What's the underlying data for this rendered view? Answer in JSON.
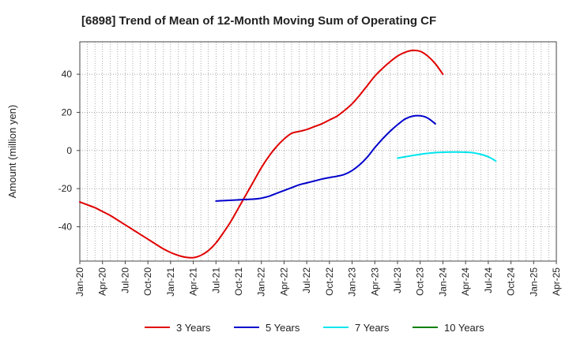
{
  "chart_data": {
    "type": "line",
    "title": "[6898]  Trend of Mean of 12-Month Moving Sum of Operating CF",
    "xlabel": "",
    "ylabel": "Amount (million yen)",
    "ylim": [
      -58,
      57
    ],
    "yticks": [
      40,
      20,
      0,
      -20,
      -40
    ],
    "ytick_labels": [
      "40",
      "20",
      "0",
      "-20",
      "-40"
    ],
    "x_start": "Jan-20",
    "x_end": "Apr-25",
    "xtick_labels": [
      "Jan-20",
      "Apr-20",
      "Jul-20",
      "Oct-20",
      "Jan-21",
      "Apr-21",
      "Jul-21",
      "Oct-21",
      "Jan-22",
      "Apr-22",
      "Jul-22",
      "Oct-22",
      "Jan-23",
      "Apr-23",
      "Jul-23",
      "Oct-23",
      "Jan-24",
      "Apr-24",
      "Jul-24",
      "Oct-24",
      "Jan-25",
      "Apr-25"
    ],
    "grid": true,
    "legend_position": "bottom",
    "series": [
      {
        "name": "3 Years",
        "color": "#e00000",
        "start_index": 0,
        "values": [
          -27,
          -28.5,
          -30,
          -32,
          -34,
          -36.5,
          -39,
          -41.5,
          -44,
          -46.5,
          -49,
          -51.5,
          -53.5,
          -55,
          -56,
          -56.2,
          -55,
          -52.5,
          -48.5,
          -43,
          -37,
          -30,
          -23,
          -16,
          -9,
          -3,
          2,
          6,
          9,
          10,
          11,
          12.5,
          14,
          16,
          18,
          21,
          24.5,
          29,
          34,
          39,
          43,
          46.5,
          49.5,
          51.5,
          52.5,
          52,
          49.5,
          45.5,
          40
        ]
      },
      {
        "name": "5 Years",
        "color": "#0000cc",
        "start_index": 18,
        "values": [
          -26.5,
          -26.3,
          -26.1,
          -25.9,
          -25.7,
          -25.5,
          -25,
          -24,
          -22.5,
          -21,
          -19.5,
          -18,
          -17,
          -16,
          -15,
          -14.2,
          -13.5,
          -12.5,
          -10.5,
          -7.5,
          -3.5,
          1.5,
          6,
          10,
          13.5,
          16.5,
          18,
          18.2,
          17,
          14
        ]
      },
      {
        "name": "7 Years",
        "color": "#00e5ee",
        "start_index": 42,
        "values": [
          -4,
          -3.3,
          -2.6,
          -2,
          -1.5,
          -1.1,
          -0.9,
          -0.8,
          -0.8,
          -0.9,
          -1.2,
          -2,
          -3.3,
          -5.5
        ]
      },
      {
        "name": "10 Years",
        "color": "#008000",
        "start_index": 0,
        "values": []
      }
    ]
  }
}
